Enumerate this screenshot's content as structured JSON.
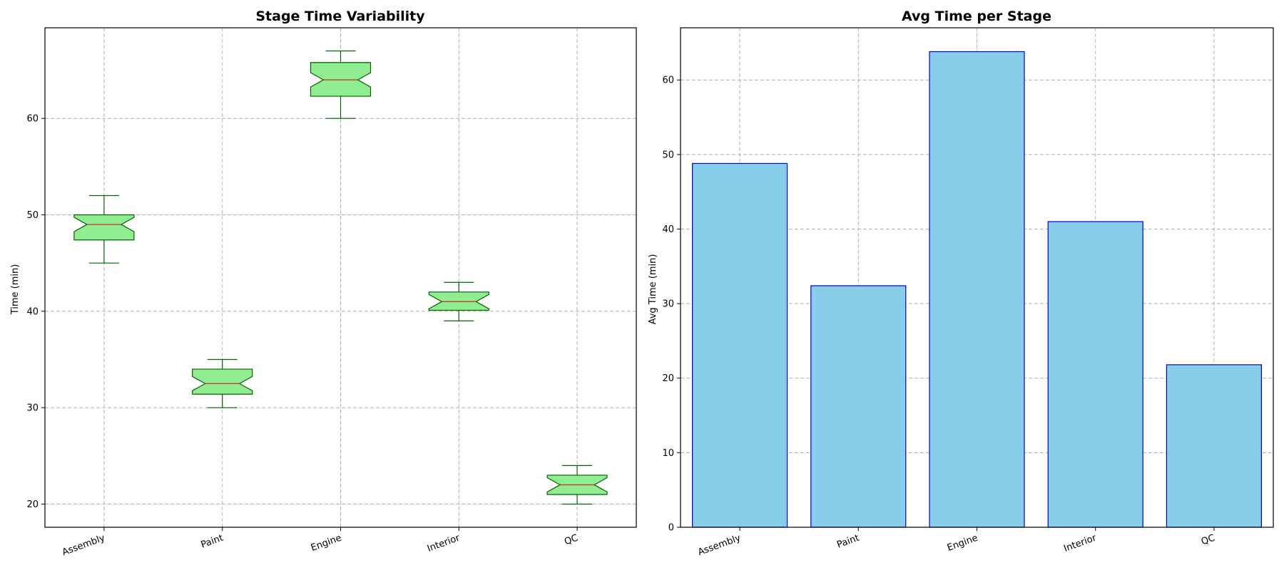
{
  "chart_data": [
    {
      "type": "box",
      "title": "Stage Time Variability",
      "xlabel": "",
      "ylabel": "Time (min)",
      "ylim": [
        17.6,
        69.4
      ],
      "yticks": [
        20,
        30,
        40,
        50,
        60
      ],
      "grid": true,
      "categories": [
        "Assembly",
        "Paint",
        "Engine",
        "Interior",
        "QC"
      ],
      "boxes": [
        {
          "min": 45,
          "q1": 47.4,
          "median": 49,
          "q3": 50,
          "max": 52
        },
        {
          "min": 30,
          "q1": 31.4,
          "median": 32.5,
          "q3": 34,
          "max": 35
        },
        {
          "min": 60,
          "q1": 62.3,
          "median": 64,
          "q3": 65.8,
          "max": 67
        },
        {
          "min": 39,
          "q1": 40.1,
          "median": 41,
          "q3": 42,
          "max": 43
        },
        {
          "min": 20,
          "q1": 21.0,
          "median": 22,
          "q3": 23,
          "max": 24
        }
      ],
      "colors": {
        "box_fill": "#90ee90",
        "box_edge": "#006400",
        "median": "#c04040"
      }
    },
    {
      "type": "bar",
      "title": "Avg Time per Stage",
      "xlabel": "",
      "ylabel": "Avg Time (min)",
      "ylim": [
        0,
        67
      ],
      "yticks": [
        0,
        10,
        20,
        30,
        40,
        50,
        60
      ],
      "grid": true,
      "categories": [
        "Assembly",
        "Paint",
        "Engine",
        "Interior",
        "QC"
      ],
      "values": [
        48.8,
        32.4,
        63.8,
        41.0,
        21.8
      ],
      "colors": {
        "bar_fill": "#87ceeb",
        "bar_edge": "#0000cd"
      }
    }
  ]
}
